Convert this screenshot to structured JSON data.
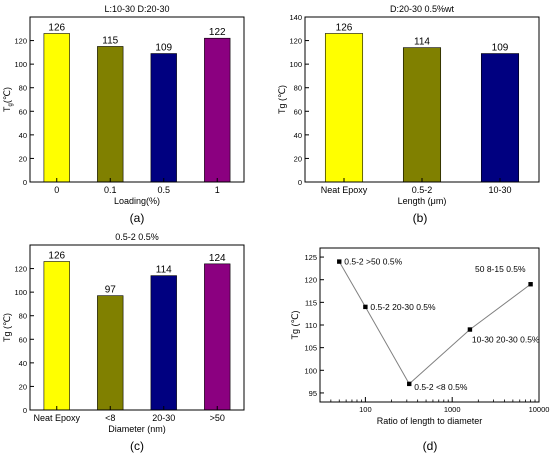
{
  "chart_data": [
    {
      "panel": "(a)",
      "type": "bar",
      "title": "L:10-30  D:20-30",
      "xlabel": "Loading(%)",
      "ylabel": "T",
      "ylabel_sub": "g",
      "ylabel_unit": "(℃)",
      "categories": [
        "0",
        "0.1",
        "0.5",
        "1"
      ],
      "values": [
        126,
        115,
        109,
        122
      ],
      "labels": [
        "126",
        "115",
        "109",
        "122"
      ],
      "colors": [
        "#ffff00",
        "#808000",
        "#000080",
        "#8b0080"
      ],
      "ylim": [
        0,
        140
      ],
      "yticks": [
        0,
        20,
        40,
        60,
        80,
        100,
        120
      ]
    },
    {
      "panel": "(b)",
      "type": "bar",
      "title": "D:20-30 0.5%wt",
      "xlabel": "Length (μm)",
      "ylabel": "Tg (℃)",
      "categories": [
        "Neat Epoxy",
        "0.5-2",
        "10-30"
      ],
      "values": [
        126,
        114,
        109
      ],
      "labels": [
        "126",
        "114",
        "109"
      ],
      "colors": [
        "#ffff00",
        "#808000",
        "#000080"
      ],
      "ylim": [
        0,
        140
      ],
      "yticks": [
        0,
        20,
        40,
        60,
        80,
        100,
        120,
        140
      ]
    },
    {
      "panel": "(c)",
      "type": "bar",
      "title": "0.5-2 0.5%",
      "xlabel": "Diameter (nm)",
      "ylabel": "Tg (℃)",
      "categories": [
        "Neat Epoxy",
        "<8",
        "20-30",
        ">50"
      ],
      "values": [
        126,
        97,
        114,
        124
      ],
      "labels": [
        "126",
        "97",
        "114",
        "124"
      ],
      "colors": [
        "#ffff00",
        "#808000",
        "#000080",
        "#8b0080"
      ],
      "ylim": [
        0,
        140
      ],
      "yticks": [
        0,
        20,
        40,
        60,
        80,
        100,
        120
      ]
    },
    {
      "panel": "(d)",
      "type": "line",
      "xscale": "log",
      "xlabel": "Ratio of  length to diameter",
      "ylabel": "Tg (℃)",
      "x": [
        50,
        100,
        320,
        1600,
        8000
      ],
      "y": [
        124,
        114,
        97,
        109,
        119
      ],
      "point_labels": [
        "0.5-2 >50 0.5%",
        "0.5-2 20-30 0.5%",
        "0.5-2 <8 0.5%",
        "10-30 20-30 0.5%",
        "50 8-15 0.5%"
      ],
      "xlim": [
        30,
        10000
      ],
      "ylim": [
        93,
        127
      ],
      "xticks": [
        100,
        1000,
        10000
      ],
      "xtick_labels": [
        "100",
        "1000",
        "10000"
      ],
      "yticks": [
        95,
        100,
        105,
        110,
        115,
        120,
        125
      ],
      "line_color": "#808080",
      "marker_color": "#000000"
    }
  ]
}
